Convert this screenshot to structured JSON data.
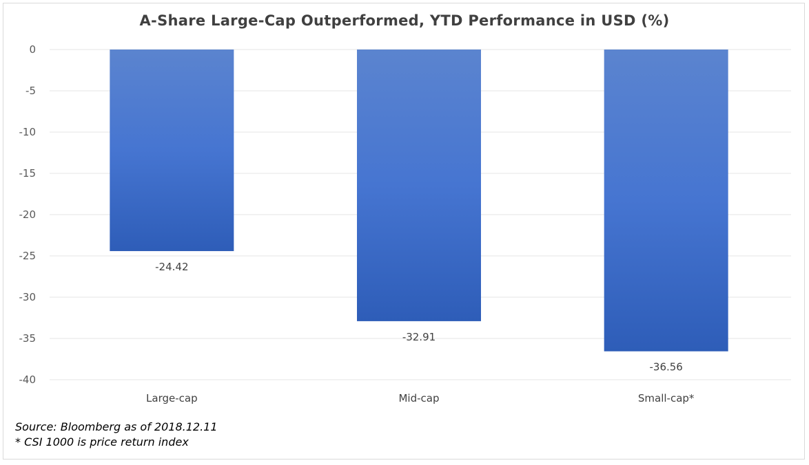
{
  "chart_data": {
    "type": "bar",
    "title": "A-Share Large-Cap Outperformed, YTD Performance in USD (%)",
    "categories": [
      "Large-cap",
      "Mid-cap",
      "Small-cap*"
    ],
    "values": [
      -24.42,
      -32.91,
      -36.56
    ],
    "data_labels": [
      "-24.42",
      "-32.91",
      "-36.56"
    ],
    "yticks": [
      0,
      -5,
      -10,
      -15,
      -20,
      -25,
      -30,
      -35,
      -40
    ],
    "ylim": [
      -40,
      0
    ],
    "grid": true,
    "legend": "none",
    "bar_color_top": "#5b84cf",
    "bar_color_bottom": "#2e5db8",
    "grid_color": "#e5e5e5"
  },
  "notes": {
    "source": "Source: Bloomberg as of 2018.12.11",
    "footnote": "* CSI 1000 is price return index"
  }
}
